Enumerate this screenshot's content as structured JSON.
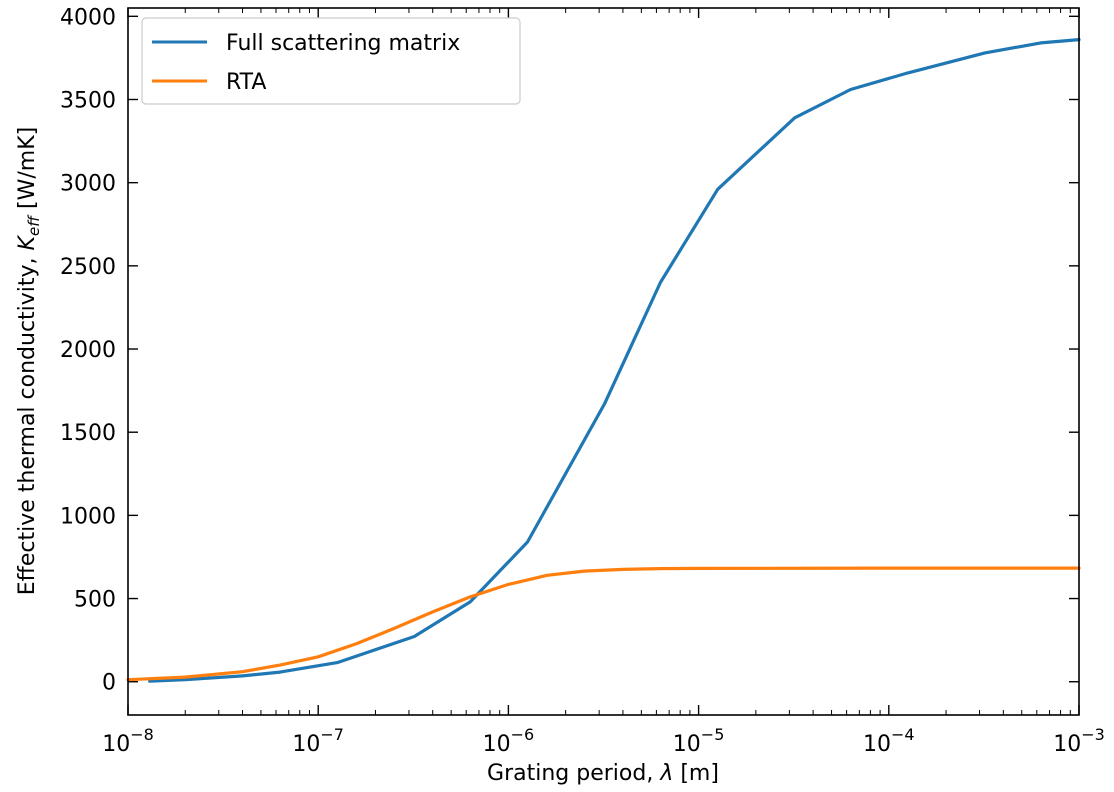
{
  "chart_data": {
    "type": "line",
    "title": "",
    "xlabel_main": "Grating period, ",
    "xlabel_symbol": "λ",
    "xlabel_unit": " [m]",
    "ylabel_main": "Effective thermal conductivity, ",
    "ylabel_symbol": "K",
    "ylabel_sub": "eff",
    "ylabel_unit": " [W/mK]",
    "x_scale": "log",
    "xlim": [
      1e-08,
      0.001
    ],
    "ylim": [
      -200,
      4050
    ],
    "x_ticks": [
      {
        "base": "10",
        "exp": "−8",
        "value": 1e-08
      },
      {
        "base": "10",
        "exp": "−7",
        "value": 1e-07
      },
      {
        "base": "10",
        "exp": "−6",
        "value": 1e-06
      },
      {
        "base": "10",
        "exp": "−5",
        "value": 1e-05
      },
      {
        "base": "10",
        "exp": "−4",
        "value": 0.0001
      },
      {
        "base": "10",
        "exp": "−3",
        "value": 0.001
      }
    ],
    "y_ticks": [
      "0",
      "500",
      "1000",
      "1500",
      "2000",
      "2500",
      "3000",
      "3500",
      "4000"
    ],
    "grid": false,
    "legend_position": "top-left",
    "series": [
      {
        "name": "Full scattering matrix",
        "color": "#1f77b4",
        "x": [
          1.3e-08,
          2e-08,
          4e-08,
          6.3e-08,
          1.26e-07,
          3.2e-07,
          6.3e-07,
          1.26e-06,
          3.2e-06,
          6.3e-06,
          1.26e-05,
          3.2e-05,
          6.3e-05,
          0.000126,
          0.00032,
          0.00063,
          0.001
        ],
        "y": [
          3,
          12,
          35,
          58,
          115,
          272,
          480,
          840,
          1670,
          2400,
          2960,
          3390,
          3560,
          3660,
          3780,
          3840,
          3860
        ]
      },
      {
        "name": "RTA",
        "color": "#ff7f0e",
        "x": [
          1e-08,
          2e-08,
          4e-08,
          6.3e-08,
          1e-07,
          1.6e-07,
          2.5e-07,
          4e-07,
          6.3e-07,
          1e-06,
          1.6e-06,
          2.5e-06,
          4e-06,
          6.3e-06,
          1e-05,
          0.0001,
          0.001
        ],
        "y": [
          12,
          28,
          60,
          100,
          150,
          230,
          320,
          420,
          510,
          585,
          640,
          665,
          675,
          680,
          681,
          683,
          683
        ]
      }
    ]
  }
}
